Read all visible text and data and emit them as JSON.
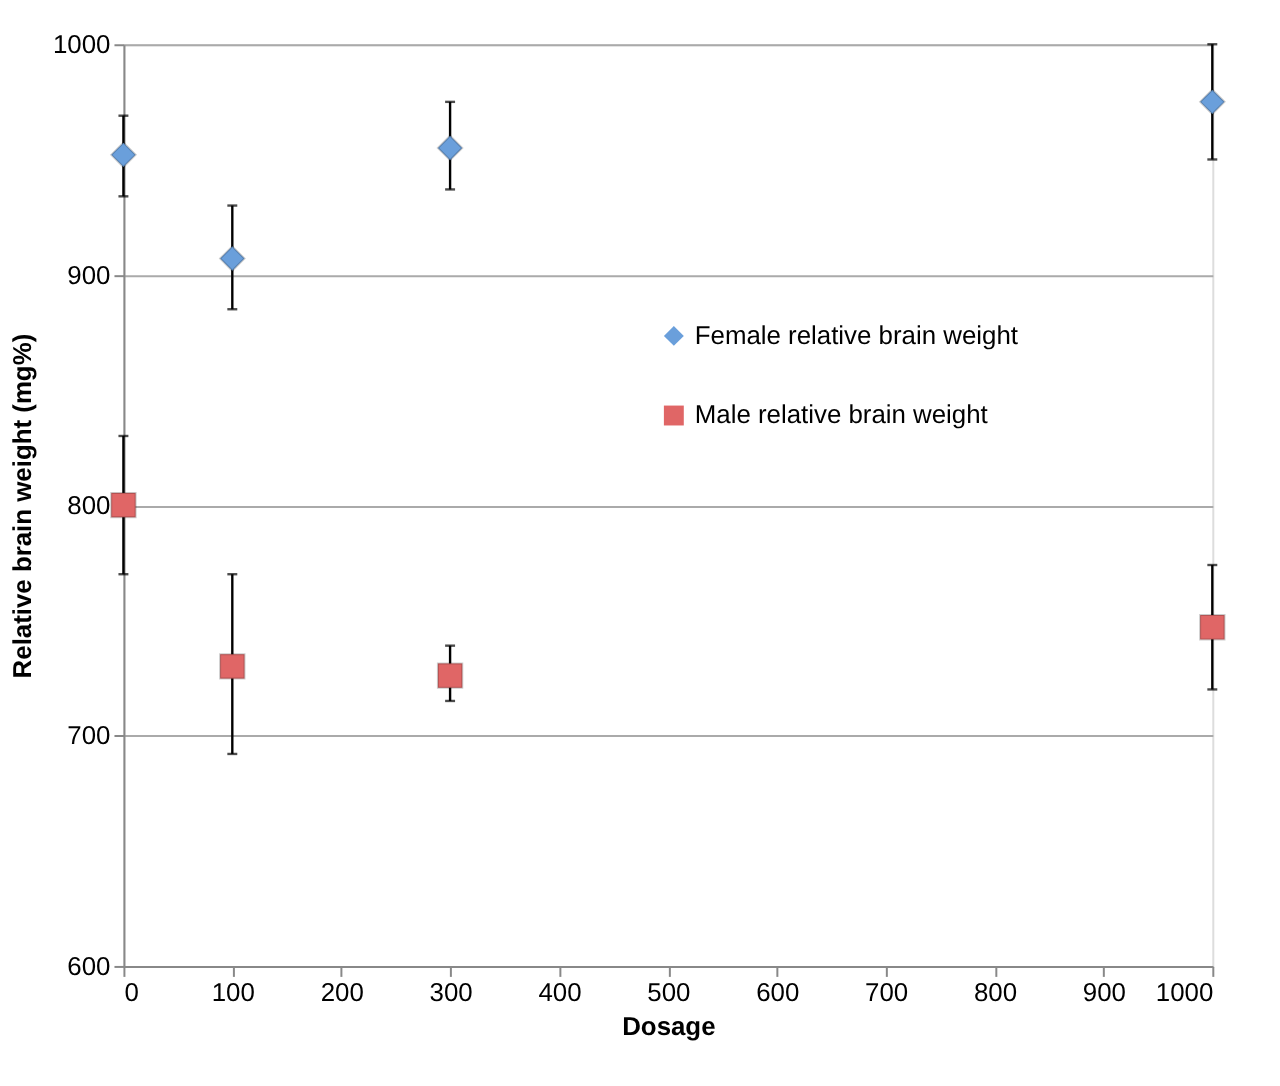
{
  "chart_data": {
    "type": "scatter",
    "xlabel": "Dosage",
    "ylabel": "Relative brain weight (mg%)",
    "x": [
      0,
      100,
      300,
      1000
    ],
    "series": [
      {
        "name": "Female relative brain weight",
        "color": "#6a9fdb",
        "marker": "diamond",
        "values": [
          952,
          907,
          955,
          975
        ],
        "errors": [
          [
            934,
            969
          ],
          [
            885,
            930
          ],
          [
            937,
            975
          ],
          [
            950,
            1000
          ]
        ]
      },
      {
        "name": "Male relative brain weight",
        "color": "#e06666",
        "marker": "square",
        "values": [
          800,
          730,
          726,
          747
        ],
        "errors": [
          [
            770,
            830
          ],
          [
            692,
            770
          ],
          [
            715,
            739
          ],
          [
            720,
            774
          ]
        ]
      }
    ],
    "xlim": [
      0,
      1000
    ],
    "xticks": [
      0,
      100,
      200,
      300,
      400,
      500,
      600,
      700,
      800,
      900,
      1000
    ],
    "ylim": [
      600,
      1000
    ],
    "yticks": [
      600,
      700,
      800,
      900,
      1000
    ],
    "grid": "y",
    "legend": "right"
  }
}
